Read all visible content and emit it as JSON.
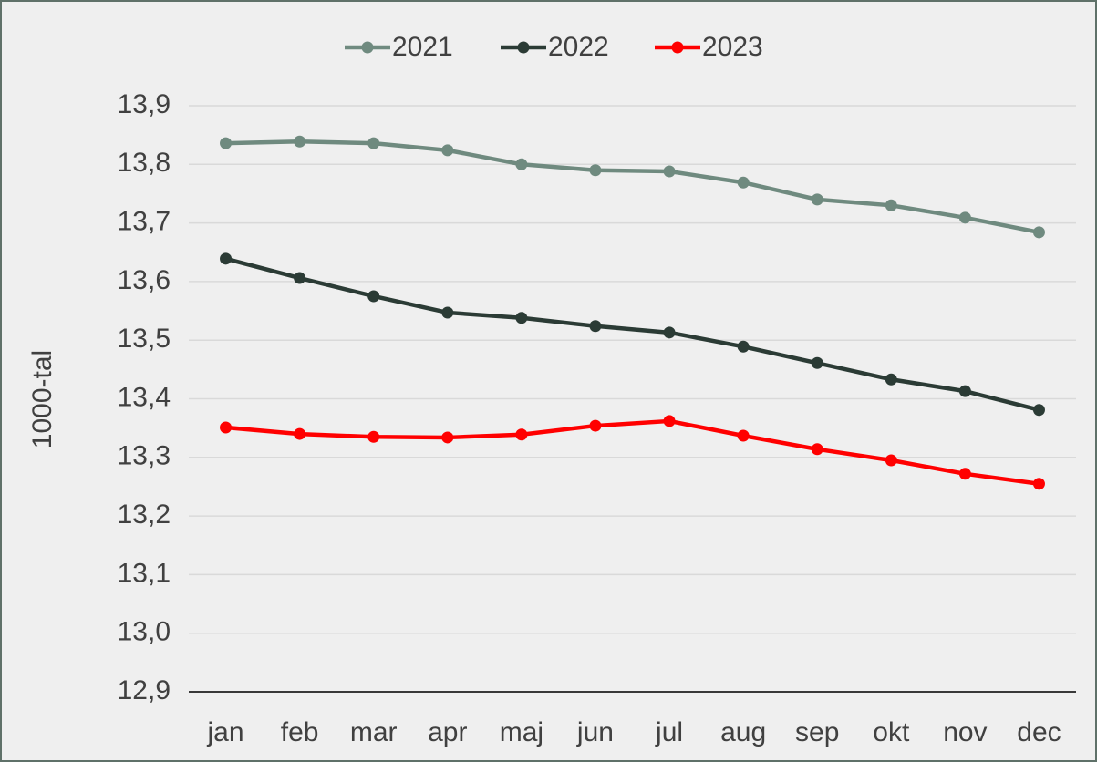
{
  "chart_data": {
    "type": "line",
    "y_label": "1000-tal",
    "categories": [
      "jan",
      "feb",
      "mar",
      "apr",
      "maj",
      "jun",
      "jul",
      "aug",
      "sep",
      "okt",
      "nov",
      "dec"
    ],
    "series": [
      {
        "name": "2021",
        "color": "#6f8a7f",
        "values": [
          13.836,
          13.839,
          13.836,
          13.824,
          13.8,
          13.79,
          13.788,
          13.769,
          13.74,
          13.73,
          13.709,
          13.684
        ]
      },
      {
        "name": "2022",
        "color": "#2b3b35",
        "values": [
          13.639,
          13.606,
          13.575,
          13.547,
          13.538,
          13.524,
          13.513,
          13.489,
          13.461,
          13.433,
          13.413,
          13.381
        ]
      },
      {
        "name": "2023",
        "color": "#ff0000",
        "values": [
          13.351,
          13.34,
          13.335,
          13.334,
          13.339,
          13.354,
          13.362,
          13.337,
          13.314,
          13.295,
          13.272,
          13.255
        ]
      }
    ],
    "ylim": [
      12.9,
      13.9
    ],
    "yticks": [
      {
        "value": 12.9,
        "label": "12,9"
      },
      {
        "value": 13.0,
        "label": "13,0"
      },
      {
        "value": 13.1,
        "label": "13,1"
      },
      {
        "value": 13.2,
        "label": "13,2"
      },
      {
        "value": 13.3,
        "label": "13,3"
      },
      {
        "value": 13.4,
        "label": "13,4"
      },
      {
        "value": 13.5,
        "label": "13,5"
      },
      {
        "value": 13.6,
        "label": "13,6"
      },
      {
        "value": 13.7,
        "label": "13,7"
      },
      {
        "value": 13.8,
        "label": "13,8"
      },
      {
        "value": 13.9,
        "label": "13,9"
      }
    ],
    "grid": true,
    "legend": "top"
  }
}
